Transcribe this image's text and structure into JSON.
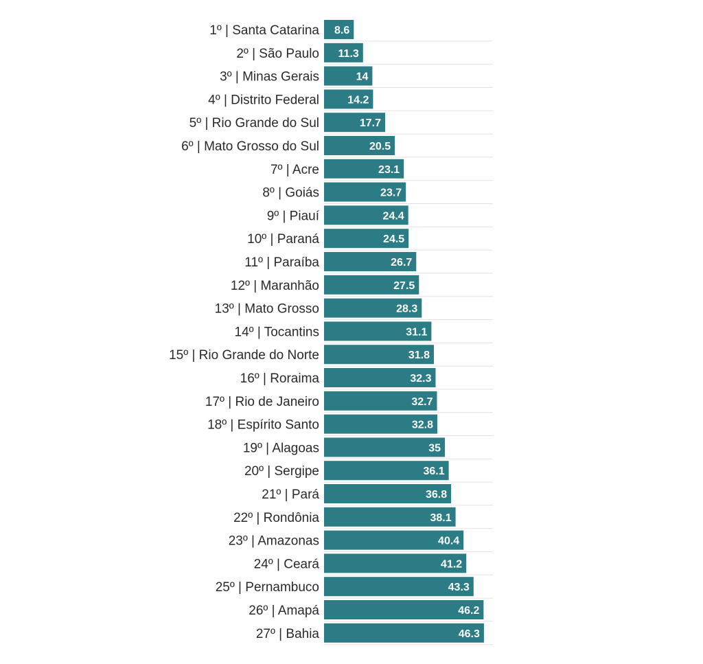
{
  "chart_data": {
    "type": "bar",
    "orientation": "horizontal",
    "title": "",
    "xlabel": "",
    "ylabel": "",
    "grid": true,
    "bar_color": "#2b7c85",
    "label_color": "#ffffff",
    "categories": [
      "1º | Santa Catarina",
      "2º | São Paulo",
      "3º | Minas Gerais",
      "4º | Distrito Federal",
      "5º | Rio Grande do Sul",
      "6º | Mato Grosso do Sul",
      "7º | Acre",
      "8º | Goiás",
      "9º | Piauí",
      "10º | Paraná",
      "11º | Paraíba",
      "12º | Maranhão",
      "13º | Mato Grosso",
      "14º | Tocantins",
      "15º | Rio Grande do Norte",
      "16º | Roraima",
      "17º | Rio de Janeiro",
      "18º | Espírito Santo",
      "19º | Alagoas",
      "20º | Sergipe",
      "21º | Pará",
      "22º | Rondônia",
      "23º | Amazonas",
      "24º | Ceará",
      "25º | Pernambuco",
      "26º | Amapá",
      "27º | Bahia"
    ],
    "values": [
      8.6,
      11.3,
      14,
      14.2,
      17.7,
      20.5,
      23.1,
      23.7,
      24.4,
      24.5,
      26.7,
      27.5,
      28.3,
      31.1,
      31.8,
      32.3,
      32.7,
      32.8,
      35,
      36.1,
      36.8,
      38.1,
      40.4,
      41.2,
      43.3,
      46.2,
      46.3
    ],
    "value_labels": [
      "8.6",
      "11.3",
      "14",
      "14.2",
      "17.7",
      "20.5",
      "23.1",
      "23.7",
      "24.4",
      "24.5",
      "26.7",
      "27.5",
      "28.3",
      "31.1",
      "31.8",
      "32.3",
      "32.7",
      "32.8",
      "35",
      "36.1",
      "36.8",
      "38.1",
      "40.4",
      "41.2",
      "43.3",
      "46.2",
      "46.3"
    ],
    "xlim": [
      0,
      50
    ]
  }
}
